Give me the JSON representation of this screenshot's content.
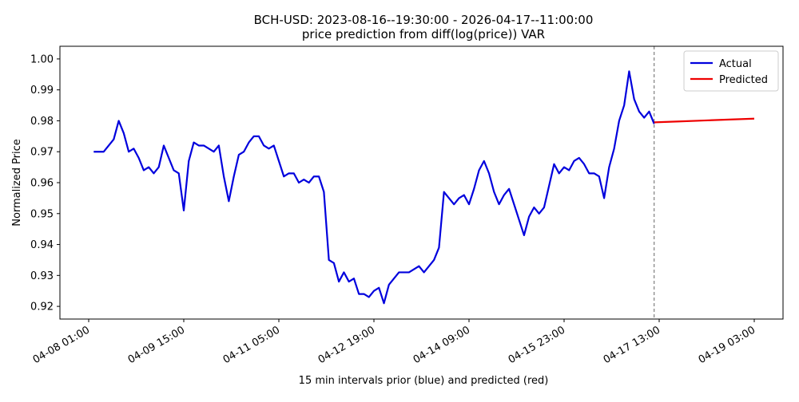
{
  "chart_data": {
    "type": "line",
    "title": "BCH-USD: 2023-08-16--19:30:00 - 2026-04-17--11:00:00",
    "subtitle": "price prediction from diff(log(price)) VAR",
    "x_label": "15 min intervals prior (blue) and predicted (red)",
    "y_label": "Normalized Price",
    "xlim": [
      "04-07 13:30",
      "04-19 14:30"
    ],
    "xticks": [
      "04-08 01:00",
      "04-09 15:00",
      "04-11 05:00",
      "04-12 19:00",
      "04-14 09:00",
      "04-15 23:00",
      "04-17 13:00",
      "04-19 03:00"
    ],
    "ylim": [
      0.9159,
      1.0041
    ],
    "yticks": [
      0.92,
      0.93,
      0.94,
      0.95,
      0.96,
      0.97,
      0.98,
      0.99,
      {
        "value": 1,
        "label": "1.00"
      }
    ],
    "vline": "04-17 11:00",
    "legend": "upper right",
    "grid": false,
    "series": [
      {
        "name": "Actual",
        "color": "#0000dd",
        "x": [
          "04-08 03:00",
          "04-08 05:00",
          "04-08 07:00",
          "04-08 09:00",
          "04-08 11:00",
          "04-08 13:00",
          "04-08 15:00",
          "04-08 17:00",
          "04-08 19:00",
          "04-08 21:00",
          "04-08 23:00",
          "04-09 01:00",
          "04-09 03:00",
          "04-09 05:00",
          "04-09 07:00",
          "04-09 09:00",
          "04-09 11:00",
          "04-09 13:00",
          "04-09 15:00",
          "04-09 17:00",
          "04-09 19:00",
          "04-09 21:00",
          "04-09 23:00",
          "04-10 01:00",
          "04-10 03:00",
          "04-10 05:00",
          "04-10 07:00",
          "04-10 09:00",
          "04-10 11:00",
          "04-10 13:00",
          "04-10 15:00",
          "04-10 17:00",
          "04-10 19:00",
          "04-10 21:00",
          "04-10 23:00",
          "04-11 01:00",
          "04-11 03:00",
          "04-11 05:00",
          "04-11 07:00",
          "04-11 09:00",
          "04-11 11:00",
          "04-11 13:00",
          "04-11 15:00",
          "04-11 17:00",
          "04-11 19:00",
          "04-11 21:00",
          "04-11 23:00",
          "04-12 01:00",
          "04-12 03:00",
          "04-12 05:00",
          "04-12 07:00",
          "04-12 09:00",
          "04-12 11:00",
          "04-12 13:00",
          "04-12 15:00",
          "04-12 17:00",
          "04-12 19:00",
          "04-12 21:00",
          "04-12 23:00",
          "04-13 01:00",
          "04-13 03:00",
          "04-13 05:00",
          "04-13 07:00",
          "04-13 09:00",
          "04-13 11:00",
          "04-13 13:00",
          "04-13 15:00",
          "04-13 17:00",
          "04-13 19:00",
          "04-13 21:00",
          "04-13 23:00",
          "04-14 01:00",
          "04-14 03:00",
          "04-14 05:00",
          "04-14 07:00",
          "04-14 09:00",
          "04-14 11:00",
          "04-14 13:00",
          "04-14 15:00",
          "04-14 17:00",
          "04-14 19:00",
          "04-14 21:00",
          "04-14 23:00",
          "04-15 01:00",
          "04-15 03:00",
          "04-15 05:00",
          "04-15 07:00",
          "04-15 09:00",
          "04-15 11:00",
          "04-15 13:00",
          "04-15 15:00",
          "04-15 17:00",
          "04-15 19:00",
          "04-15 21:00",
          "04-15 23:00",
          "04-16 01:00",
          "04-16 03:00",
          "04-16 05:00",
          "04-16 07:00",
          "04-16 09:00",
          "04-16 11:00",
          "04-16 13:00",
          "04-16 15:00",
          "04-16 17:00",
          "04-16 19:00",
          "04-16 21:00",
          "04-16 23:00",
          "04-17 01:00",
          "04-17 03:00",
          "04-17 05:00",
          "04-17 07:00",
          "04-17 09:00",
          "04-17 11:00"
        ],
        "values": [
          0.97,
          0.97,
          0.97,
          0.972,
          0.974,
          0.98,
          0.976,
          0.97,
          0.971,
          0.968,
          0.964,
          0.965,
          0.963,
          0.965,
          0.972,
          0.968,
          0.964,
          0.963,
          0.951,
          0.967,
          0.973,
          0.972,
          0.972,
          0.971,
          0.97,
          0.972,
          0.962,
          0.954,
          0.962,
          0.969,
          0.97,
          0.973,
          0.975,
          0.975,
          0.972,
          0.971,
          0.972,
          0.967,
          0.962,
          0.963,
          0.963,
          0.96,
          0.961,
          0.96,
          0.962,
          0.962,
          0.957,
          0.935,
          0.934,
          0.928,
          0.931,
          0.928,
          0.929,
          0.924,
          0.924,
          0.923,
          0.925,
          0.926,
          0.921,
          0.927,
          0.929,
          0.931,
          0.931,
          0.931,
          0.932,
          0.933,
          0.931,
          0.933,
          0.935,
          0.939,
          0.957,
          0.955,
          0.953,
          0.955,
          0.956,
          0.953,
          0.958,
          0.964,
          0.967,
          0.963,
          0.957,
          0.953,
          0.956,
          0.958,
          0.953,
          0.948,
          0.943,
          0.949,
          0.952,
          0.95,
          0.952,
          0.959,
          0.966,
          0.963,
          0.965,
          0.964,
          0.967,
          0.968,
          0.966,
          0.963,
          0.963,
          0.962,
          0.955,
          0.965,
          0.971,
          0.98,
          0.985,
          0.996,
          0.987,
          0.983,
          0.981,
          0.983,
          0.979
        ]
      },
      {
        "name": "Predicted",
        "color": "#ee0000",
        "x": [
          "04-17 11:00",
          "04-17 21:00",
          "04-18 07:00",
          "04-18 17:00",
          "04-19 03:00"
        ],
        "values": [
          0.9795,
          0.9798,
          0.9801,
          0.9804,
          0.9807
        ]
      }
    ]
  }
}
